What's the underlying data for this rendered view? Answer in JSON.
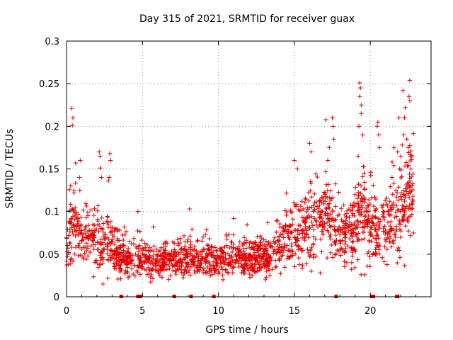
{
  "chart_data": {
    "type": "scatter",
    "title": "Day 315 of 2021, SRMTID for receiver guax",
    "xlabel": "GPS time / hours",
    "ylabel": "SRMTID / TECUs",
    "xlim": [
      0,
      24
    ],
    "ylim": [
      0,
      0.3
    ],
    "x_ticks": [
      0,
      5,
      10,
      15,
      20
    ],
    "x_tick_labels": [
      "0",
      "5",
      "10",
      "15",
      "20"
    ],
    "y_ticks": [
      0,
      0.05,
      0.1,
      0.15,
      0.2,
      0.25,
      0.3
    ],
    "y_tick_labels": [
      "0",
      "0.05",
      "0.1",
      "0.15",
      "0.2",
      "0.25",
      "0.3"
    ],
    "grid": true,
    "marker": "+",
    "color": "#e00000",
    "data_start_hour": 0.0,
    "data_end_hour": 22.85,
    "envelope": [
      {
        "h": 0.0,
        "base": 0.065,
        "spread": 0.03
      },
      {
        "h": 0.5,
        "base": 0.09,
        "spread": 0.04
      },
      {
        "h": 1.0,
        "base": 0.075,
        "spread": 0.035
      },
      {
        "h": 2.0,
        "base": 0.065,
        "spread": 0.03
      },
      {
        "h": 3.0,
        "base": 0.06,
        "spread": 0.03
      },
      {
        "h": 3.5,
        "base": 0.045,
        "spread": 0.02
      },
      {
        "h": 6.0,
        "base": 0.042,
        "spread": 0.018
      },
      {
        "h": 8.0,
        "base": 0.045,
        "spread": 0.02
      },
      {
        "h": 10.0,
        "base": 0.042,
        "spread": 0.018
      },
      {
        "h": 12.0,
        "base": 0.045,
        "spread": 0.02
      },
      {
        "h": 13.5,
        "base": 0.045,
        "spread": 0.02
      },
      {
        "h": 14.5,
        "base": 0.07,
        "spread": 0.03
      },
      {
        "h": 16.0,
        "base": 0.085,
        "spread": 0.04
      },
      {
        "h": 17.0,
        "base": 0.095,
        "spread": 0.045
      },
      {
        "h": 18.5,
        "base": 0.07,
        "spread": 0.03
      },
      {
        "h": 19.5,
        "base": 0.09,
        "spread": 0.045
      },
      {
        "h": 20.5,
        "base": 0.075,
        "spread": 0.035
      },
      {
        "h": 21.5,
        "base": 0.095,
        "spread": 0.04
      },
      {
        "h": 22.5,
        "base": 0.12,
        "spread": 0.05
      }
    ],
    "highlights": [
      {
        "x": 0.35,
        "y": 0.221
      },
      {
        "x": 0.42,
        "y": 0.21
      },
      {
        "x": 0.38,
        "y": 0.201
      },
      {
        "x": 0.6,
        "y": 0.157
      },
      {
        "x": 0.9,
        "y": 0.16
      },
      {
        "x": 0.85,
        "y": 0.14
      },
      {
        "x": 2.15,
        "y": 0.17
      },
      {
        "x": 2.2,
        "y": 0.165
      },
      {
        "x": 2.3,
        "y": 0.14
      },
      {
        "x": 2.85,
        "y": 0.168
      },
      {
        "x": 2.9,
        "y": 0.16
      },
      {
        "x": 2.8,
        "y": 0.14
      },
      {
        "x": 2.75,
        "y": 0.136
      },
      {
        "x": 4.7,
        "y": 0.1
      },
      {
        "x": 8.1,
        "y": 0.103
      },
      {
        "x": 15.0,
        "y": 0.16
      },
      {
        "x": 15.2,
        "y": 0.15
      },
      {
        "x": 16.0,
        "y": 0.18
      },
      {
        "x": 16.1,
        "y": 0.17
      },
      {
        "x": 17.3,
        "y": 0.175
      },
      {
        "x": 17.5,
        "y": 0.21
      },
      {
        "x": 17.55,
        "y": 0.2
      },
      {
        "x": 17.6,
        "y": 0.185
      },
      {
        "x": 17.2,
        "y": 0.16
      },
      {
        "x": 19.3,
        "y": 0.251
      },
      {
        "x": 19.35,
        "y": 0.245
      },
      {
        "x": 19.3,
        "y": 0.235
      },
      {
        "x": 19.4,
        "y": 0.225
      },
      {
        "x": 19.4,
        "y": 0.215
      },
      {
        "x": 19.25,
        "y": 0.2
      },
      {
        "x": 19.5,
        "y": 0.19
      },
      {
        "x": 19.2,
        "y": 0.165
      },
      {
        "x": 19.6,
        "y": 0.145
      },
      {
        "x": 20.45,
        "y": 0.2
      },
      {
        "x": 20.5,
        "y": 0.205
      },
      {
        "x": 20.55,
        "y": 0.19
      },
      {
        "x": 20.6,
        "y": 0.175
      },
      {
        "x": 22.15,
        "y": 0.242
      },
      {
        "x": 22.6,
        "y": 0.254
      },
      {
        "x": 22.55,
        "y": 0.235
      },
      {
        "x": 22.6,
        "y": 0.23
      },
      {
        "x": 22.3,
        "y": 0.222
      },
      {
        "x": 22.25,
        "y": 0.21
      },
      {
        "x": 22.2,
        "y": 0.19
      },
      {
        "x": 22.4,
        "y": 0.185
      },
      {
        "x": 22.5,
        "y": 0.175
      },
      {
        "x": 22.1,
        "y": 0.178
      },
      {
        "x": 21.8,
        "y": 0.17
      },
      {
        "x": 22.0,
        "y": 0.165
      },
      {
        "x": 18.45,
        "y": 0.04
      },
      {
        "x": 16.1,
        "y": 0.03
      },
      {
        "x": 13.1,
        "y": 0.02
      },
      {
        "x": 10.3,
        "y": 0.02
      },
      {
        "x": 2.4,
        "y": 0.015
      }
    ],
    "gap_markers_x": [
      3.6,
      4.7,
      4.85,
      7.1,
      8.2,
      9.7,
      17.75,
      20.1,
      20.2,
      21.75,
      21.8
    ]
  }
}
